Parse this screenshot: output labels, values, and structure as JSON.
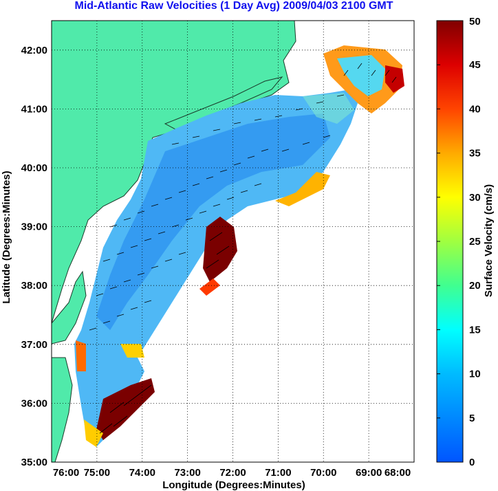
{
  "title": "Mid-Atlantic Raw Velocities (1 Day Avg) 2009/04/03 2100 GMT",
  "colors": {
    "title": "#1010ee",
    "land": "#50eaaa",
    "grid": "#000000"
  },
  "map": {
    "xlabel": "Longitude (Degrees:Minutes)",
    "ylabel": "Latitude (Degrees:Minutes)",
    "lon_range": [
      -76,
      -68
    ],
    "lat_range": [
      35,
      42.5
    ],
    "x_ticks": [
      "76:00",
      "75:00",
      "74:00",
      "73:00",
      "72:00",
      "71:00",
      "70:00",
      "69:00",
      "68:00"
    ],
    "y_ticks": [
      "42:00",
      "41:00",
      "40:00",
      "39:00",
      "38:00",
      "37:00",
      "36:00",
      "35:00"
    ],
    "grid": "dotted"
  },
  "colorbar": {
    "label": "Surface Velocity (cm/s)",
    "range": [
      0,
      50
    ],
    "ticks": [
      "50",
      "45",
      "40",
      "35",
      "30",
      "25",
      "20",
      "15",
      "10",
      "5",
      "0"
    ],
    "colormap": "jet"
  }
}
